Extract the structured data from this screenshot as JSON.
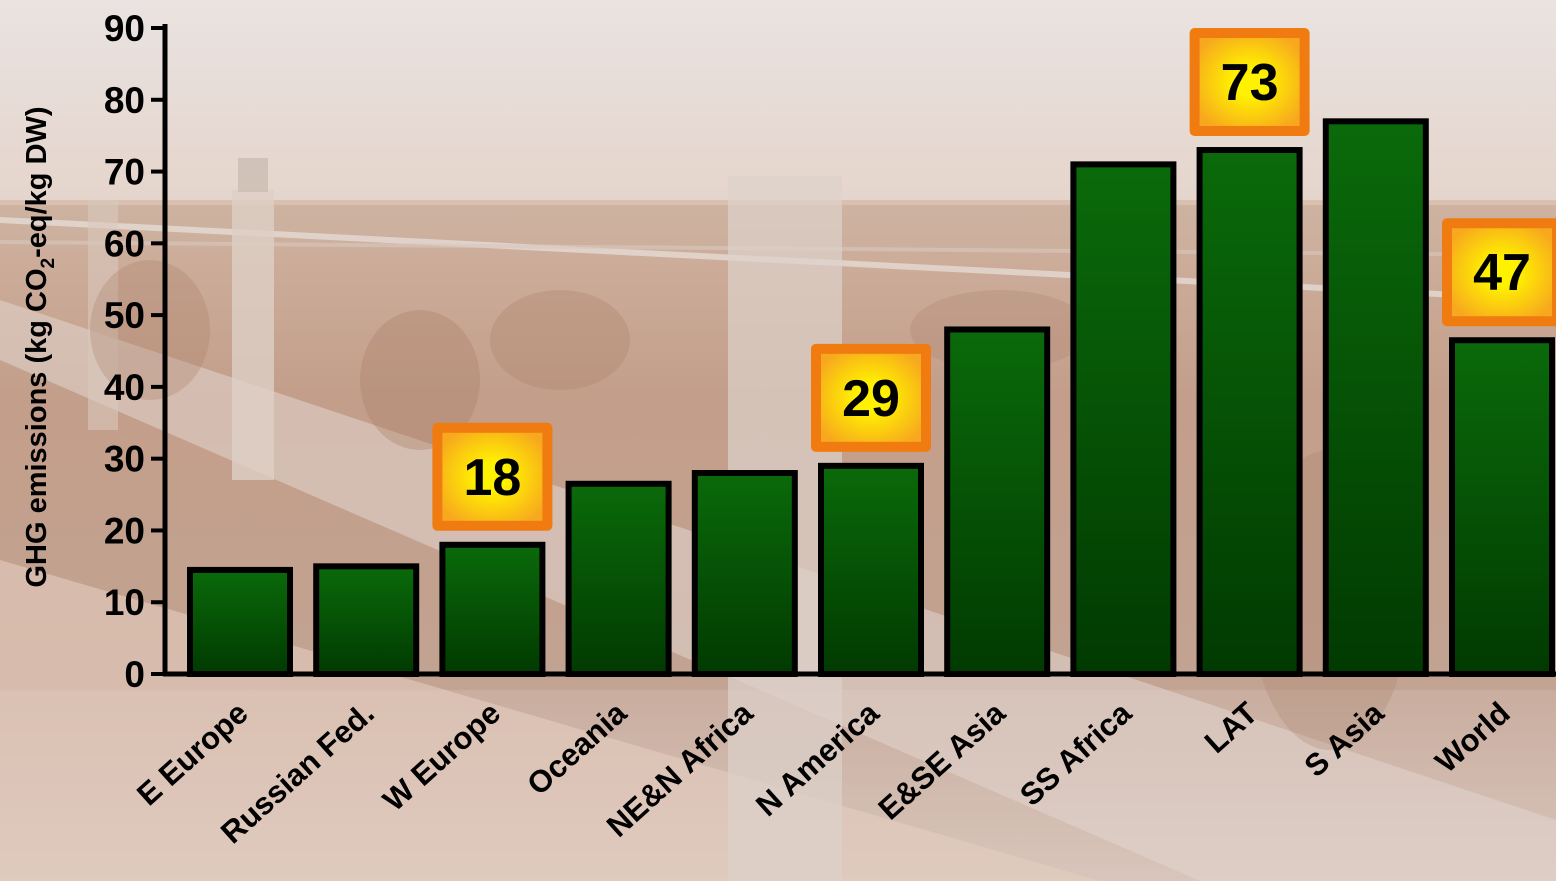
{
  "chart_data": {
    "type": "bar",
    "ylabel_parts": [
      "GHG emissions (kg CO",
      "2",
      "-eq/kg DW)"
    ],
    "ylim": [
      0,
      90
    ],
    "yticks": [
      0,
      10,
      20,
      30,
      40,
      50,
      60,
      70,
      80,
      90
    ],
    "categories": [
      "E Europe",
      "Russian Fed.",
      "W Europe",
      "Oceania",
      "NE&N Africa",
      "N America",
      "E&SE Asia",
      "SS Africa",
      "LAT",
      "S Asia",
      "World"
    ],
    "values": [
      14.5,
      15,
      18,
      26.5,
      28,
      29,
      48,
      71,
      73,
      77,
      46.5
    ],
    "callouts": [
      {
        "category": "W Europe",
        "label": "18"
      },
      {
        "category": "N America",
        "label": "29"
      },
      {
        "category": "LAT",
        "label": "73"
      },
      {
        "category": "World",
        "label": "47"
      }
    ],
    "grid": false,
    "colors": {
      "bar_top": "#0a6a0a",
      "bar_bottom": "#013a01",
      "bar_outline": "#000000",
      "callout_border": "#f07b10",
      "callout_center": "#fff200",
      "callout_edge": "#f7a81e",
      "text": "#000000"
    }
  }
}
